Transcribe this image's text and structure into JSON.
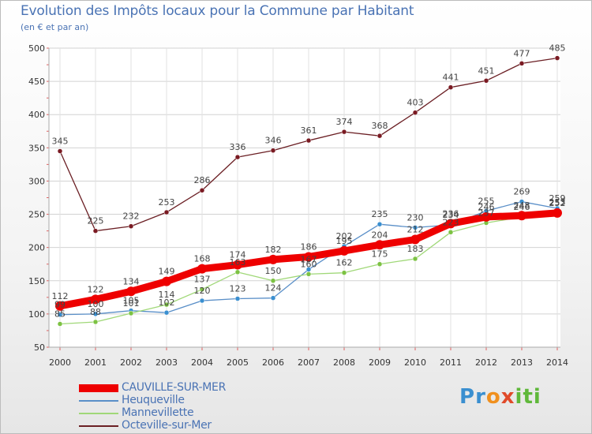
{
  "header": {
    "title": "Evolution des Impôts locaux pour la Commune par Habitant",
    "subtitle": "(en € et par an)"
  },
  "logo": {
    "text": "Proxiti",
    "letters": [
      {
        "ch": "P",
        "color": "#3a8fd0"
      },
      {
        "ch": "r",
        "color": "#3a8fd0"
      },
      {
        "ch": "o",
        "color": "#f0901e"
      },
      {
        "ch": "x",
        "color": "#e04a2a"
      },
      {
        "ch": "i",
        "color": "#5fb83a"
      },
      {
        "ch": "t",
        "color": "#5fb83a"
      },
      {
        "ch": "i",
        "color": "#5fb83a"
      }
    ]
  },
  "chart_data": {
    "type": "line",
    "title": "Evolution des Impôts locaux pour la Commune par Habitant",
    "subtitle": "(en € et par an)",
    "x": [
      "2000",
      "2001",
      "2002",
      "2003",
      "2004",
      "2005",
      "2006",
      "2007",
      "2008",
      "2009",
      "2010",
      "2011",
      "2012",
      "2013",
      "2014"
    ],
    "ylim": [
      50,
      500
    ],
    "yticks": [
      50,
      100,
      150,
      200,
      250,
      300,
      350,
      400,
      450,
      500
    ],
    "grid": true,
    "legend_position": "bottom-left",
    "series": [
      {
        "name": "Octeville-sur-Mer",
        "color": "#6b1f24",
        "marker": "#7a1a22",
        "width": 1.3,
        "values": [
          345,
          225,
          232,
          253,
          286,
          336,
          346,
          361,
          374,
          368,
          403,
          441,
          451,
          477,
          485
        ],
        "labels": [
          "345",
          "225",
          "232",
          "253",
          "286",
          "336",
          "346",
          "361",
          "374",
          "368",
          "403",
          "441",
          "451",
          "477",
          "485"
        ]
      },
      {
        "name": "Heuqueville",
        "color": "#5a8fc8",
        "marker": "#3a8fd0",
        "width": 1.3,
        "values": [
          99,
          100,
          105,
          102,
          120,
          123,
          124,
          167,
          202,
          235,
          230,
          234,
          255,
          269,
          259
        ],
        "labels": [
          "99",
          "100",
          "105",
          "102",
          "120",
          "123",
          "124",
          "167",
          "202",
          "235",
          "230",
          "234",
          "255",
          "269",
          "259"
        ]
      },
      {
        "name": "Mannevillette",
        "color": "#a0d878",
        "marker": "#7cc242",
        "width": 1.3,
        "values": [
          85,
          88,
          101,
          114,
          137,
          163,
          150,
          160,
          162,
          175,
          183,
          223,
          237,
          246,
          253
        ],
        "labels": [
          "85",
          "88",
          "101",
          "114",
          "137",
          "163",
          "150",
          "160",
          "162",
          "175",
          "183",
          "223",
          "237",
          "246",
          "253"
        ]
      },
      {
        "name": "CAUVILLE-SUR-MER",
        "color": "#ee0000",
        "marker": "#ee0000",
        "width": 9,
        "values": [
          112,
          122,
          134,
          149,
          168,
          174,
          182,
          186,
          195,
          204,
          212,
          236,
          246,
          248,
          252
        ],
        "labels": [
          "112",
          "122",
          "134",
          "149",
          "168",
          "174",
          "182",
          "186",
          "195",
          "204",
          "212",
          "236",
          "246",
          "248",
          "252"
        ]
      }
    ],
    "legend": [
      "CAUVILLE-SUR-MER",
      "Heuqueville",
      "Mannevillette",
      "Octeville-sur-Mer"
    ]
  }
}
